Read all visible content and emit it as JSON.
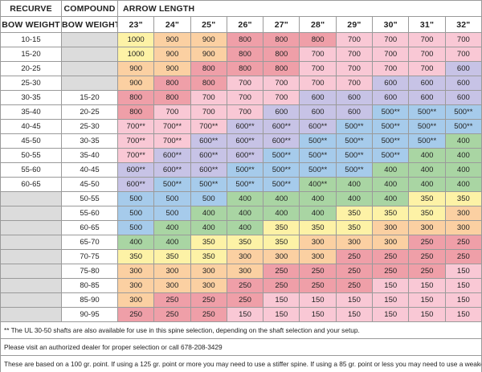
{
  "header": {
    "recurve": "RECURVE",
    "compound": "COMPOUND",
    "arrow_length": "ARROW LENGTH",
    "recurve_sub": "BOW WEIGHT",
    "compound_sub": "BOW WEIGHT",
    "lengths": [
      "23\"",
      "24\"",
      "25\"",
      "26\"",
      "27\"",
      "28\"",
      "29\"",
      "30\"",
      "31\"",
      "32\""
    ]
  },
  "table": {
    "rows": [
      {
        "recurve": "10-15",
        "compound": null,
        "values": [
          1000,
          900,
          900,
          800,
          800,
          800,
          700,
          700,
          700,
          700
        ]
      },
      {
        "recurve": "15-20",
        "compound": null,
        "values": [
          1000,
          900,
          900,
          800,
          800,
          700,
          700,
          700,
          700,
          700
        ]
      },
      {
        "recurve": "20-25",
        "compound": null,
        "values": [
          900,
          900,
          800,
          800,
          800,
          700,
          700,
          700,
          700,
          600
        ]
      },
      {
        "recurve": "25-30",
        "compound": null,
        "values": [
          900,
          800,
          800,
          700,
          700,
          700,
          700,
          600,
          600,
          600
        ]
      },
      {
        "recurve": "30-35",
        "compound": "15-20",
        "values": [
          800,
          800,
          700,
          700,
          700,
          600,
          600,
          600,
          600,
          600
        ]
      },
      {
        "recurve": "35-40",
        "compound": "20-25",
        "values": [
          800,
          700,
          700,
          700,
          600,
          600,
          600,
          "500**",
          "500**",
          "500**"
        ]
      },
      {
        "recurve": "40-45",
        "compound": "25-30",
        "values": [
          "700**",
          "700**",
          "700**",
          "600**",
          "600**",
          "600**",
          "500**",
          "500**",
          "500**",
          "500**"
        ]
      },
      {
        "recurve": "45-50",
        "compound": "30-35",
        "values": [
          "700**",
          "700**",
          "600**",
          "600**",
          "600**",
          "500**",
          "500**",
          "500**",
          "500**",
          400
        ]
      },
      {
        "recurve": "50-55",
        "compound": "35-40",
        "values": [
          "700**",
          "600**",
          "600**",
          "600**",
          "500**",
          "500**",
          "500**",
          "500**",
          400,
          400
        ]
      },
      {
        "recurve": "55-60",
        "compound": "40-45",
        "values": [
          "600**",
          "600**",
          "600**",
          "500**",
          "500**",
          "500**",
          "500**",
          400,
          400,
          400
        ]
      },
      {
        "recurve": "60-65",
        "compound": "45-50",
        "values": [
          "600**",
          "500**",
          "500**",
          "500**",
          "500**",
          "400**",
          400,
          400,
          400,
          400
        ]
      },
      {
        "recurve": null,
        "compound": "50-55",
        "values": [
          500,
          500,
          500,
          400,
          400,
          400,
          400,
          400,
          350,
          350
        ]
      },
      {
        "recurve": null,
        "compound": "55-60",
        "values": [
          500,
          500,
          400,
          400,
          400,
          400,
          350,
          350,
          350,
          300
        ]
      },
      {
        "recurve": null,
        "compound": "60-65",
        "values": [
          500,
          400,
          400,
          400,
          350,
          350,
          350,
          300,
          300,
          300
        ]
      },
      {
        "recurve": null,
        "compound": "65-70",
        "values": [
          400,
          400,
          350,
          350,
          350,
          300,
          300,
          300,
          250,
          250
        ]
      },
      {
        "recurve": null,
        "compound": "70-75",
        "values": [
          350,
          350,
          350,
          300,
          300,
          300,
          250,
          250,
          250,
          250
        ]
      },
      {
        "recurve": null,
        "compound": "75-80",
        "values": [
          300,
          300,
          300,
          300,
          250,
          250,
          250,
          250,
          250,
          150
        ]
      },
      {
        "recurve": null,
        "compound": "80-85",
        "values": [
          300,
          300,
          300,
          250,
          250,
          250,
          250,
          150,
          150,
          150
        ]
      },
      {
        "recurve": null,
        "compound": "85-90",
        "values": [
          300,
          250,
          250,
          250,
          150,
          150,
          150,
          150,
          150,
          150
        ]
      },
      {
        "recurve": null,
        "compound": "90-95",
        "values": [
          250,
          250,
          250,
          150,
          150,
          150,
          150,
          150,
          150,
          150
        ]
      }
    ]
  },
  "notes": [
    "** The UL 30-50 shafts are also available for use in this spine selection, depending on the shaft selection and your setup.",
    "Please visit an authorized dealer for proper selection or call 678-208-3429",
    "These are based on a 100 gr. point. If using a 125 gr. point or more you may need to use a stiffer spine. If using a 85 gr. point or less you may need to use a weaker spine."
  ]
}
